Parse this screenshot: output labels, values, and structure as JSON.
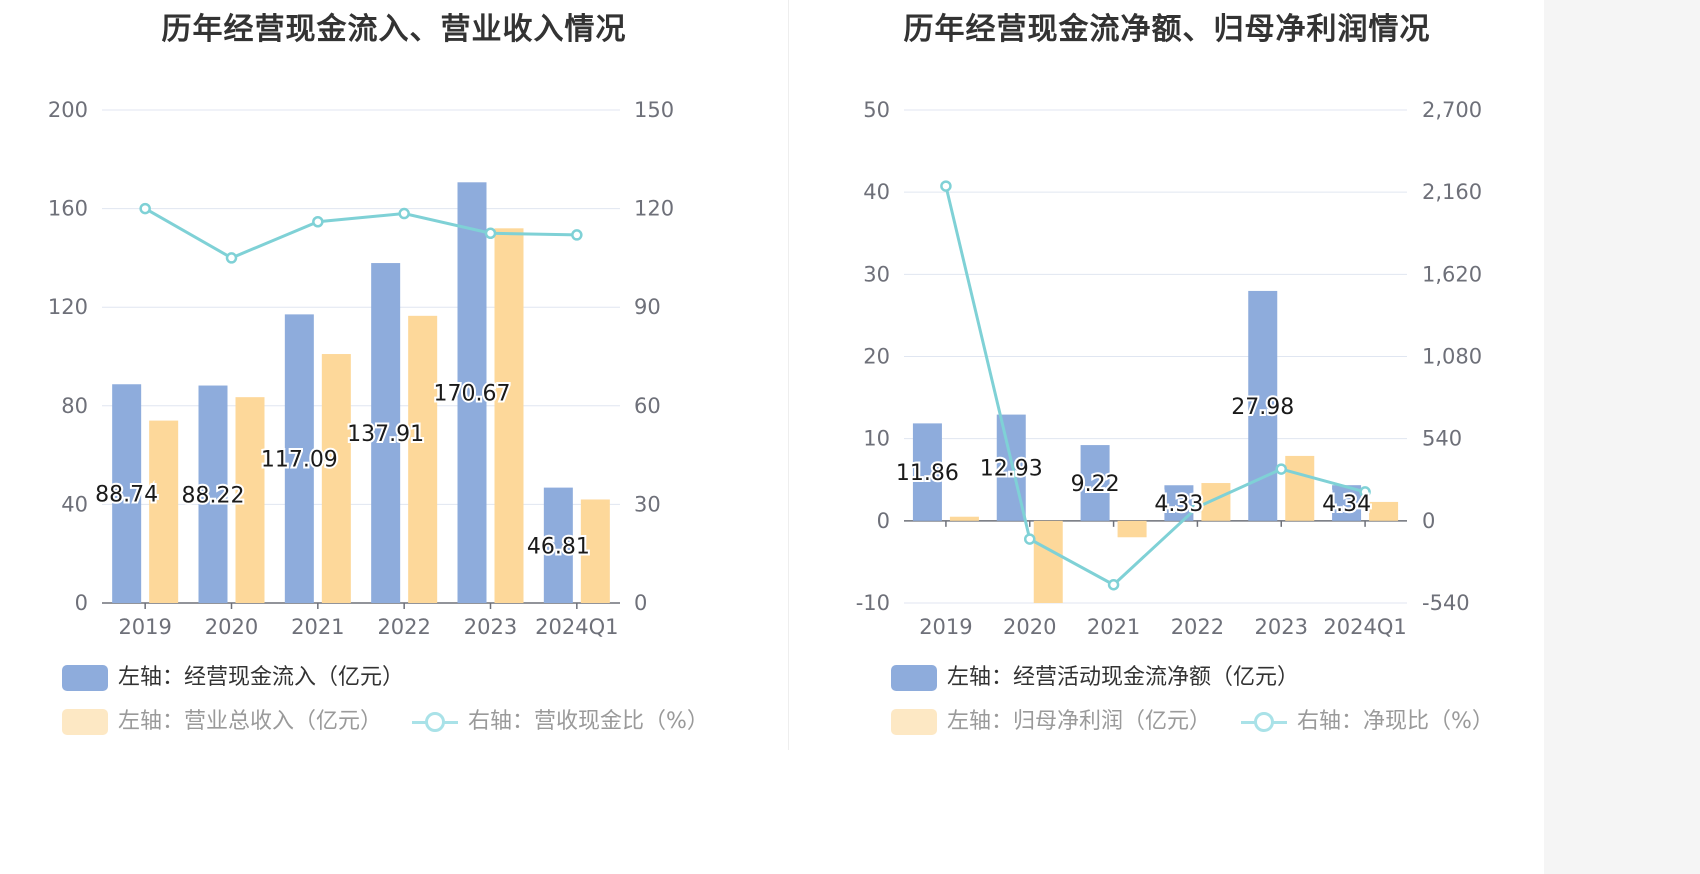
{
  "charts": [
    {
      "title": "历年经营现金流入、营业收入情况",
      "legend": [
        "左轴：经营现金流入（亿元）",
        "左轴：营业总收入（亿元）",
        "右轴：营收现金比（%）"
      ]
    },
    {
      "title": "历年经营现金流净额、归母净利润情况",
      "legend": [
        "左轴：经营活动现金流净额（亿元）",
        "左轴：归母净利润（亿元）",
        "右轴：净现比（%）"
      ]
    }
  ],
  "colors": {
    "bar_blue": "#8eacdc",
    "bar_orange": "#fdd89a",
    "line": "#7fd1d6"
  },
  "chart_data": [
    {
      "type": "bar",
      "title": "历年经营现金流入、营业收入情况",
      "categories": [
        "2019",
        "2020",
        "2021",
        "2022",
        "2023",
        "2024Q1"
      ],
      "series": [
        {
          "name": "左轴：经营现金流入（亿元）",
          "axis": "left",
          "type": "bar",
          "values": [
            88.74,
            88.22,
            117.09,
            137.91,
            170.67,
            46.81
          ],
          "show_labels": true
        },
        {
          "name": "左轴：营业总收入（亿元）",
          "axis": "left",
          "type": "bar",
          "values": [
            74.0,
            83.5,
            101.0,
            116.5,
            152.0,
            42.0
          ],
          "show_labels": false
        },
        {
          "name": "右轴：营收现金比（%）",
          "axis": "right",
          "type": "line",
          "values": [
            120,
            105,
            116,
            118.5,
            112.5,
            112
          ],
          "show_labels": false
        }
      ],
      "y_left": {
        "ticks": [
          "0",
          "40",
          "80",
          "120",
          "160",
          "200"
        ],
        "range": [
          0,
          200
        ]
      },
      "y_right": {
        "ticks": [
          "0",
          "30",
          "60",
          "90",
          "120",
          "150"
        ],
        "range": [
          0,
          150
        ]
      },
      "grid": true
    },
    {
      "type": "bar",
      "title": "历年经营现金流净额、归母净利润情况",
      "categories": [
        "2019",
        "2020",
        "2021",
        "2022",
        "2023",
        "2024Q1"
      ],
      "series": [
        {
          "name": "左轴：经营活动现金流净额（亿元）",
          "axis": "left",
          "type": "bar",
          "values": [
            11.86,
            12.93,
            9.22,
            4.33,
            27.98,
            4.34
          ],
          "show_labels": true
        },
        {
          "name": "左轴：归母净利润（亿元）",
          "axis": "left",
          "type": "bar",
          "values": [
            0.5,
            -10,
            -2,
            4.6,
            7.9,
            2.3
          ],
          "show_labels": false
        },
        {
          "name": "右轴：净现比（%）",
          "axis": "right",
          "type": "line",
          "values": [
            2200,
            -120,
            -420,
            90,
            340,
            190
          ],
          "show_labels": false
        }
      ],
      "y_left": {
        "ticks": [
          "-10",
          "0",
          "10",
          "20",
          "30",
          "40",
          "50"
        ],
        "range": [
          -10,
          50
        ]
      },
      "y_right": {
        "ticks": [
          "-540",
          "0",
          "540",
          "1,080",
          "1,620",
          "2,160",
          "2,700"
        ],
        "range": [
          -540,
          2700
        ]
      },
      "grid": true
    }
  ]
}
